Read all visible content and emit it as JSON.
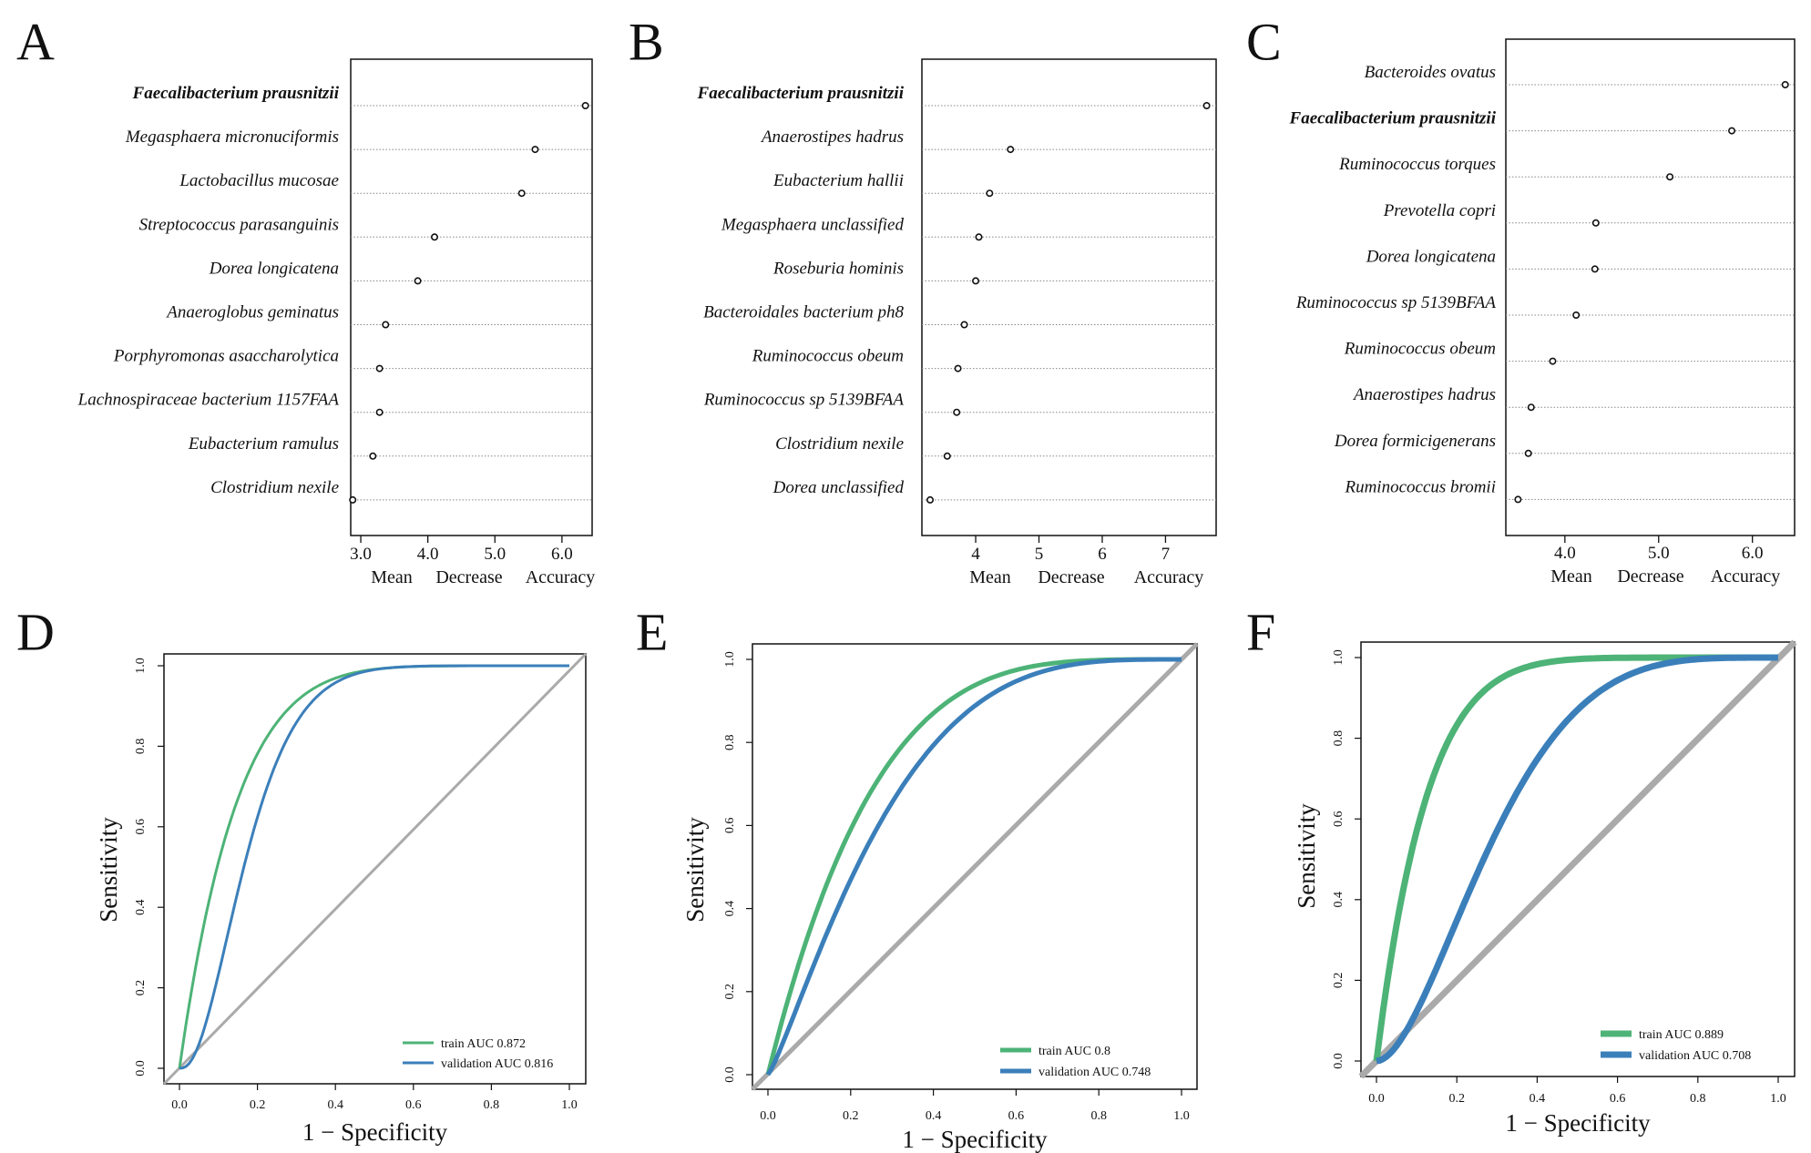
{
  "chart_data": [
    {
      "panel": "A",
      "type": "scatter",
      "subtype": "dotchart",
      "xlabel": [
        "Mean",
        "Decrease",
        "Accuracy"
      ],
      "xlim": [
        2.85,
        6.45
      ],
      "xticks": [
        3,
        4,
        5,
        6
      ],
      "xtick_labels": [
        "3.0",
        "4.0",
        "5.0",
        "6.0"
      ],
      "categories": [
        "Faecalibacterium  prausnitzii",
        "Megasphaera micronuciformis",
        "Lactobacillus mucosae",
        "Streptococcus parasanguinis",
        "Dorea longicatena",
        "Anaeroglobus geminatus",
        "Porphyromonas asaccharolytica",
        "Lachnospiraceae bacterium 1157FAA",
        "Eubacterium ramulus",
        "Clostridium nexile"
      ],
      "bold_index": 0,
      "values": [
        6.35,
        5.6,
        5.4,
        4.1,
        3.85,
        3.37,
        3.28,
        3.28,
        3.18,
        2.88
      ]
    },
    {
      "panel": "B",
      "type": "scatter",
      "subtype": "dotchart",
      "xlabel": [
        "Mean",
        "Decrease",
        "Accuracy"
      ],
      "xlim": [
        3.15,
        7.8
      ],
      "xticks": [
        4,
        5,
        6,
        7
      ],
      "xtick_labels": [
        "4",
        "5",
        "6",
        "7"
      ],
      "categories": [
        "Faecalibacterium  prausnitzii",
        "Anaerostipes hadrus",
        "Eubacterium hallii",
        "Megasphaera unclassified",
        "Roseburia hominis",
        "Bacteroidales bacterium ph8",
        "Ruminococcus obeum",
        "Ruminococcus sp 5139BFAA",
        "Clostridium nexile",
        "Dorea unclassified"
      ],
      "bold_index": 0,
      "values": [
        7.65,
        4.55,
        4.22,
        4.05,
        4.0,
        3.82,
        3.72,
        3.7,
        3.55,
        3.28
      ]
    },
    {
      "panel": "C",
      "type": "scatter",
      "subtype": "dotchart",
      "xlabel": [
        "Mean",
        "Decrease",
        "Accuracy"
      ],
      "xlim": [
        3.37,
        6.45
      ],
      "xticks": [
        4,
        5,
        6
      ],
      "xtick_labels": [
        "4.0",
        "5.0",
        "6.0"
      ],
      "categories": [
        "Bacteroides ovatus",
        "Faecalibacterium  prausnitzii",
        "Ruminococcus torques",
        "Prevotella copri",
        "Dorea longicatena",
        "Ruminococcus sp 5139BFAA",
        "Ruminococcus obeum",
        "Anaerostipes hadrus",
        "Dorea formicigenerans",
        "Ruminococcus bromii"
      ],
      "bold_index": 1,
      "values": [
        6.35,
        5.78,
        5.12,
        4.33,
        4.32,
        4.12,
        3.87,
        3.64,
        3.61,
        3.5
      ]
    },
    {
      "panel": "D",
      "type": "line",
      "subtype": "roc",
      "xlabel": "1 − Specificity",
      "ylabel": "Sensitivity",
      "xlim": [
        0,
        1
      ],
      "ylim": [
        0,
        1
      ],
      "ticks": [
        0,
        0.2,
        0.4,
        0.6,
        0.8,
        1
      ],
      "tick_labels": [
        "0.0",
        "0.2",
        "0.4",
        "0.6",
        "0.8",
        "1.0"
      ],
      "series": [
        {
          "name": "train AUC 0.872",
          "auc": 0.872,
          "shape": 1.0,
          "color": "#4db377"
        },
        {
          "name": "validation AUC 0.816",
          "auc": 0.816,
          "shape": 2.6,
          "color": "#3b7fba"
        }
      ]
    },
    {
      "panel": "E",
      "type": "line",
      "subtype": "roc",
      "xlabel": "1 − Specificity",
      "ylabel": "Sensitivity",
      "xlim": [
        0,
        1
      ],
      "ylim": [
        0,
        1
      ],
      "ticks": [
        0,
        0.2,
        0.4,
        0.6,
        0.8,
        1
      ],
      "tick_labels": [
        "0.0",
        "0.2",
        "0.4",
        "0.6",
        "0.8",
        "1.0"
      ],
      "series": [
        {
          "name": "train AUC 0.8",
          "auc": 0.8,
          "shape": 1.0,
          "color": "#4db377"
        },
        {
          "name": "validation AUC 0.748",
          "auc": 0.748,
          "shape": 1.2,
          "color": "#3b7fba"
        }
      ]
    },
    {
      "panel": "F",
      "type": "line",
      "subtype": "roc",
      "xlabel": "1 − Specificity",
      "ylabel": "Sensitivity",
      "xlim": [
        0,
        1
      ],
      "ylim": [
        0,
        1
      ],
      "ticks": [
        0,
        0.2,
        0.4,
        0.6,
        0.8,
        1
      ],
      "tick_labels": [
        "0.0",
        "0.2",
        "0.4",
        "0.6",
        "0.8",
        "1.0"
      ],
      "series": [
        {
          "name": "train AUC 0.889",
          "auc": 0.889,
          "shape": 1.0,
          "color": "#4db377"
        },
        {
          "name": "validation AUC 0.708",
          "auc": 0.708,
          "shape": 1.9,
          "color": "#3b7fba"
        }
      ]
    }
  ]
}
